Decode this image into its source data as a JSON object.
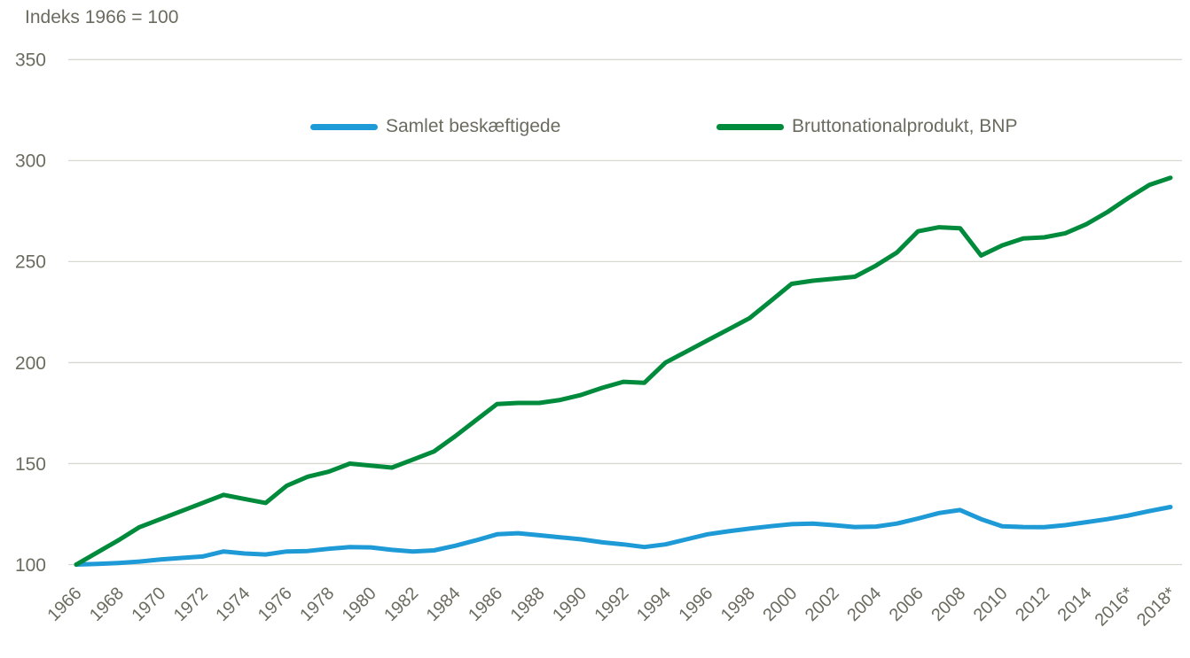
{
  "unit_label": "Indeks 1966 = 100",
  "colors": {
    "employment_line": "#1e9ad6",
    "gdp_line": "#008a3c",
    "gridline": "#d8d8d0",
    "text": "#6b6b60",
    "background": "#ffffff"
  },
  "legend": {
    "position": "top",
    "items": [
      {
        "label": "Samlet beskæftigede",
        "color": "#1e9ad6"
      },
      {
        "label": "Bruttonationalprodukt, BNP",
        "color": "#008a3c"
      }
    ]
  },
  "chart_data": {
    "type": "line",
    "title": "Indeks 1966 = 100",
    "xlabel": "",
    "ylabel": "Indeks 1966 = 100",
    "ylim": [
      100,
      350
    ],
    "y_ticks": [
      100,
      150,
      200,
      250,
      300,
      350
    ],
    "grid": "horizontal",
    "legend_position": "top",
    "x": [
      1966,
      1967,
      1968,
      1969,
      1970,
      1971,
      1972,
      1973,
      1974,
      1975,
      1976,
      1977,
      1978,
      1979,
      1980,
      1981,
      1982,
      1983,
      1984,
      1985,
      1986,
      1987,
      1988,
      1989,
      1990,
      1991,
      1992,
      1993,
      1994,
      1995,
      1996,
      1997,
      1998,
      1999,
      2000,
      2001,
      2002,
      2003,
      2004,
      2005,
      2006,
      2007,
      2008,
      2009,
      2010,
      2011,
      2012,
      2013,
      2014,
      2015,
      2016,
      2017,
      2018
    ],
    "x_tick_labels": [
      "1966",
      "1968",
      "1970",
      "1972",
      "1974",
      "1976",
      "1978",
      "1980",
      "1982",
      "1984",
      "1986",
      "1988",
      "1990",
      "1992",
      "1994",
      "1996",
      "1998",
      "2000",
      "2002",
      "2004",
      "2006",
      "2008",
      "2010",
      "2012",
      "2014",
      "2016*",
      "2018*"
    ],
    "series": [
      {
        "name": "Samlet beskæftigede",
        "color": "#1e9ad6",
        "values": [
          100,
          100.3,
          100.8,
          101.5,
          102.5,
          103.3,
          104,
          106.5,
          105.5,
          105,
          106.5,
          106.7,
          107.8,
          108.7,
          108.5,
          107.3,
          106.5,
          107,
          109.3,
          112,
          115,
          115.5,
          114.5,
          113.5,
          112.5,
          111,
          110,
          108.7,
          110,
          112.5,
          115,
          116.5,
          117.8,
          119,
          120,
          120.3,
          119.5,
          118.6,
          118.8,
          120.3,
          122.8,
          125.5,
          127,
          122.5,
          119,
          118.6,
          118.5,
          119.5,
          121,
          122.5,
          124.3,
          126.5,
          128.5
        ]
      },
      {
        "name": "Bruttonationalprodukt, BNP",
        "color": "#008a3c",
        "values": [
          100,
          106,
          112,
          118.5,
          122.5,
          126.5,
          130.5,
          134.5,
          132.5,
          130.5,
          139,
          143.5,
          146,
          150,
          149,
          148,
          152,
          156,
          163.5,
          171.5,
          179.5,
          180,
          180,
          181.5,
          184,
          187.5,
          190.5,
          190,
          200,
          205.5,
          211,
          216.5,
          222,
          230.5,
          239,
          240.5,
          241.5,
          242.5,
          248,
          254.5,
          265,
          267,
          266.5,
          253,
          258,
          261.5,
          262,
          264,
          268.5,
          274.5,
          281.5,
          288,
          291.5
        ]
      }
    ]
  }
}
